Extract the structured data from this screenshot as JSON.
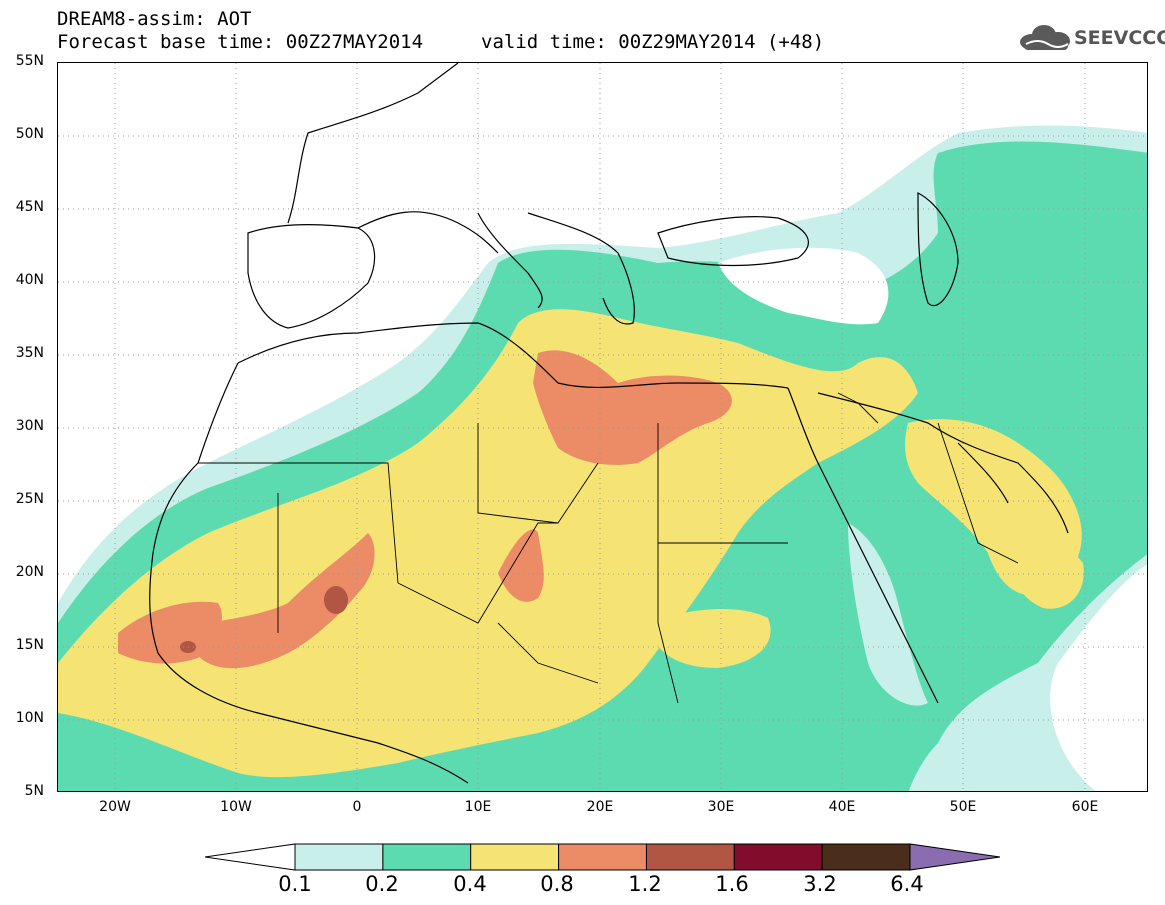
{
  "header": {
    "title": "DREAM8-assim: AOT",
    "base_time": "Forecast base time: 00Z27MAY2014",
    "valid_time": "valid time: 00Z29MAY2014 (+48)"
  },
  "logo": {
    "text": "SEEVCCC",
    "icon": "cloud-logo-icon"
  },
  "axes": {
    "lat_labels": [
      "55N",
      "50N",
      "45N",
      "40N",
      "35N",
      "30N",
      "25N",
      "20N",
      "15N",
      "10N",
      "5N"
    ],
    "lon_labels": [
      "20W",
      "10W",
      "0",
      "10E",
      "20E",
      "30E",
      "40E",
      "50E",
      "60E"
    ],
    "lat_range": [
      5,
      55
    ],
    "lon_range": [
      -25,
      65
    ]
  },
  "legend": {
    "levels": [
      "0.1",
      "0.2",
      "0.4",
      "0.8",
      "1.2",
      "1.6",
      "3.2",
      "6.4"
    ],
    "colors": [
      "#c8efe9",
      "#5ddbb0",
      "#f5e474",
      "#ec8c66",
      "#b05642",
      "#820c2c",
      "#4a2d1a",
      "#8a6db0"
    ],
    "under_color": "#ffffff",
    "over_color": "#8a6db0"
  },
  "field": {
    "variable": "AOT",
    "grid": "dotted"
  }
}
